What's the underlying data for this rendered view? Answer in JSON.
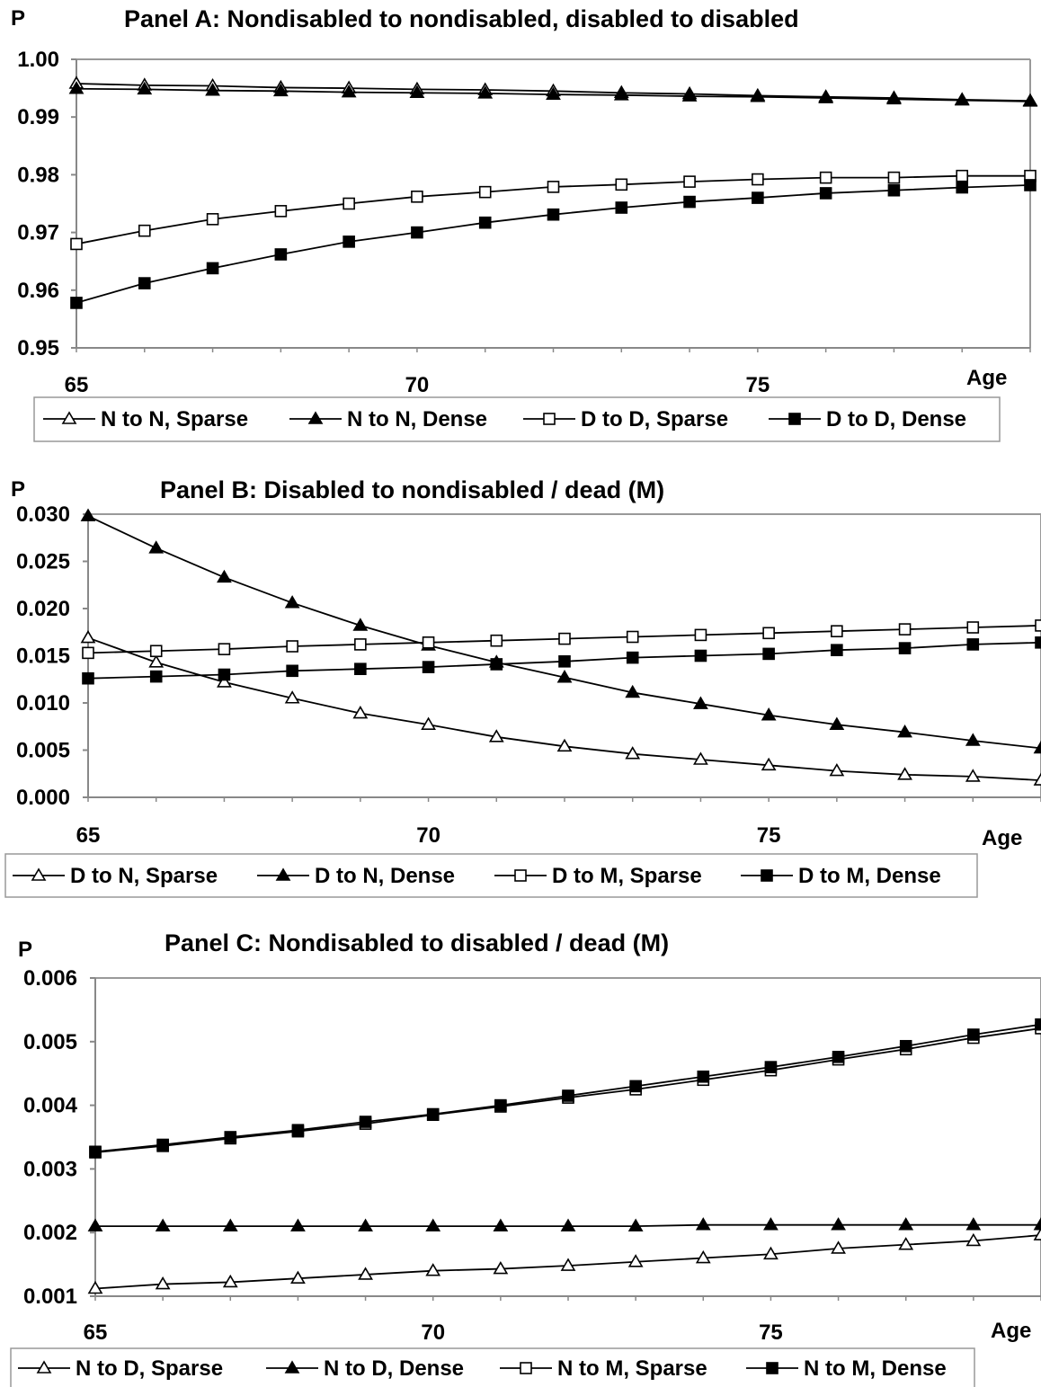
{
  "chart_data": [
    {
      "type": "line",
      "title": "Panel A: Nondisabled to nondisabled, disabled to disabled",
      "ylabel": "P",
      "xlabel": "Age",
      "ylim": [
        0.95,
        1.0
      ],
      "xlim": [
        65,
        79
      ],
      "y_ticks": [
        "1.00",
        "0.99",
        "0.98",
        "0.97",
        "0.96",
        "0.95"
      ],
      "x_ticks": [
        "65",
        "70",
        "75"
      ],
      "grid": false,
      "x": [
        65,
        66,
        67,
        68,
        69,
        70,
        71,
        72,
        73,
        74,
        75,
        76,
        77,
        78,
        79
      ],
      "series": [
        {
          "name": "N to N, Sparse",
          "marker": "open-triangle",
          "values": [
            0.9958,
            0.9955,
            0.9954,
            0.9951,
            0.995,
            0.9948,
            0.9947,
            0.9945,
            0.9942,
            0.994,
            0.9937,
            0.9935,
            0.9933,
            0.993,
            0.9928
          ]
        },
        {
          "name": "N to N, Dense",
          "marker": "filled-triangle",
          "values": [
            0.9949,
            0.9948,
            0.9946,
            0.9945,
            0.9943,
            0.9942,
            0.9941,
            0.9939,
            0.9938,
            0.9936,
            0.9935,
            0.9933,
            0.9931,
            0.9929,
            0.9927
          ]
        },
        {
          "name": "D to D, Sparse",
          "marker": "open-square",
          "values": [
            0.968,
            0.9703,
            0.9723,
            0.9737,
            0.975,
            0.9762,
            0.977,
            0.9779,
            0.9783,
            0.9788,
            0.9792,
            0.9795,
            0.9795,
            0.9798,
            0.9798
          ]
        },
        {
          "name": "D to D, Dense",
          "marker": "filled-square",
          "values": [
            0.9578,
            0.9612,
            0.9638,
            0.9662,
            0.9684,
            0.97,
            0.9717,
            0.9731,
            0.9743,
            0.9753,
            0.976,
            0.9768,
            0.9773,
            0.9778,
            0.9782
          ]
        }
      ]
    },
    {
      "type": "line",
      "title": "Panel B: Disabled to nondisabled / dead (M)",
      "ylabel": "P",
      "xlabel": "Age",
      "ylim": [
        0.0,
        0.03
      ],
      "xlim": [
        65,
        79
      ],
      "y_ticks": [
        "0.030",
        "0.025",
        "0.020",
        "0.015",
        "0.010",
        "0.005",
        "0.000"
      ],
      "x_ticks": [
        "65",
        "70",
        "75"
      ],
      "grid": false,
      "x": [
        65,
        66,
        67,
        68,
        69,
        70,
        71,
        72,
        73,
        74,
        75,
        76,
        77,
        78,
        79
      ],
      "series": [
        {
          "name": "D to N, Sparse",
          "marker": "open-triangle",
          "values": [
            0.0169,
            0.0143,
            0.0122,
            0.0105,
            0.0089,
            0.0077,
            0.0064,
            0.0054,
            0.0046,
            0.004,
            0.0034,
            0.0028,
            0.0024,
            0.0022,
            0.0018
          ]
        },
        {
          "name": "D to N, Dense",
          "marker": "filled-triangle",
          "values": [
            0.0298,
            0.0264,
            0.0233,
            0.0206,
            0.0182,
            0.0161,
            0.0143,
            0.0127,
            0.0111,
            0.0099,
            0.0087,
            0.0077,
            0.0069,
            0.006,
            0.0052
          ]
        },
        {
          "name": "D to M, Sparse",
          "marker": "open-square",
          "values": [
            0.0153,
            0.0155,
            0.0157,
            0.016,
            0.0162,
            0.0164,
            0.0166,
            0.0168,
            0.017,
            0.0172,
            0.0174,
            0.0176,
            0.0178,
            0.018,
            0.0182
          ]
        },
        {
          "name": "D to M, Dense",
          "marker": "filled-square",
          "values": [
            0.0126,
            0.0128,
            0.013,
            0.0134,
            0.0136,
            0.0138,
            0.0141,
            0.0144,
            0.0148,
            0.015,
            0.0152,
            0.0156,
            0.0158,
            0.0162,
            0.0164
          ]
        }
      ]
    },
    {
      "type": "line",
      "title": "Panel C:  Nondisabled to disabled / dead (M)",
      "ylabel": "P",
      "xlabel": "Age",
      "ylim": [
        0.001,
        0.006
      ],
      "xlim": [
        65,
        79
      ],
      "y_ticks": [
        "0.006",
        "0.005",
        "0.004",
        "0.003",
        "0.002",
        "0.001"
      ],
      "x_ticks": [
        "65",
        "70",
        "75"
      ],
      "grid": false,
      "x": [
        65,
        66,
        67,
        68,
        69,
        70,
        71,
        72,
        73,
        74,
        75,
        76,
        77,
        78,
        79
      ],
      "series": [
        {
          "name": "N to D, Sparse",
          "marker": "open-triangle",
          "values": [
            0.00112,
            0.00119,
            0.00122,
            0.00128,
            0.00134,
            0.0014,
            0.00143,
            0.00148,
            0.00154,
            0.0016,
            0.00166,
            0.00175,
            0.00181,
            0.00187,
            0.00196
          ]
        },
        {
          "name": "N to D, Dense",
          "marker": "filled-triangle",
          "values": [
            0.0021,
            0.0021,
            0.0021,
            0.0021,
            0.0021,
            0.0021,
            0.0021,
            0.0021,
            0.0021,
            0.00212,
            0.00212,
            0.00212,
            0.00212,
            0.00212,
            0.00212
          ]
        },
        {
          "name": "N to M, Sparse",
          "marker": "open-square",
          "values": [
            0.00326,
            0.00336,
            0.00348,
            0.00359,
            0.00371,
            0.00385,
            0.00398,
            0.00412,
            0.00425,
            0.0044,
            0.00455,
            0.00472,
            0.00488,
            0.00506,
            0.00521
          ]
        },
        {
          "name": "N to M, Dense",
          "marker": "filled-square",
          "values": [
            0.00327,
            0.00338,
            0.0035,
            0.00361,
            0.00374,
            0.00386,
            0.004,
            0.00415,
            0.0043,
            0.00445,
            0.0046,
            0.00476,
            0.00493,
            0.00511,
            0.00527
          ]
        }
      ]
    }
  ]
}
